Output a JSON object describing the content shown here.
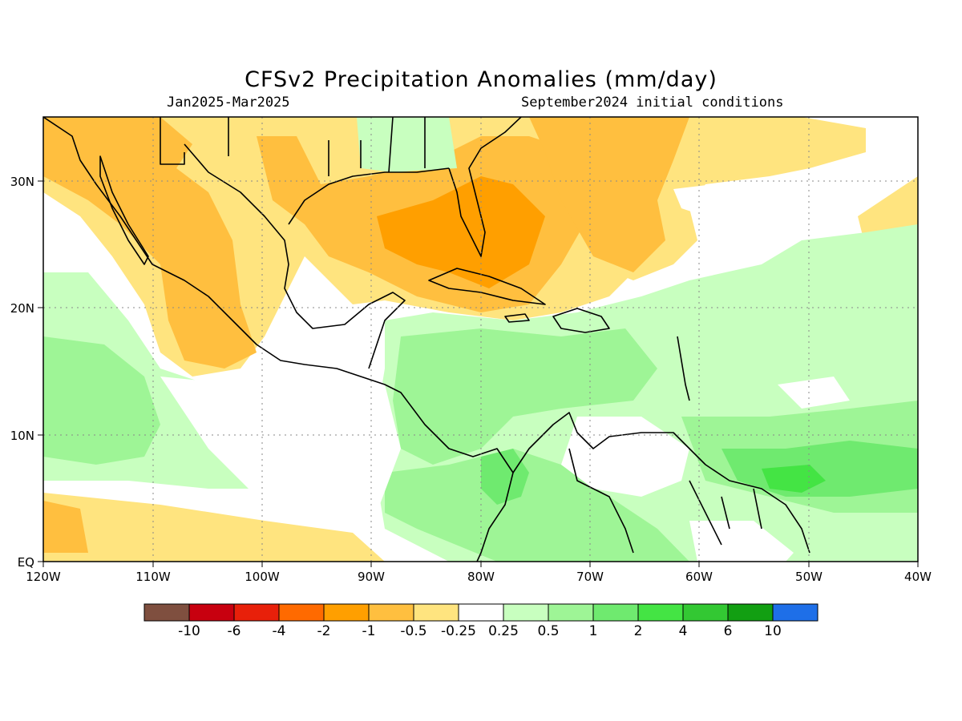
{
  "title": "CFSv2 Precipitation Anomalies (mm/day)",
  "subtitle_left": "Jan2025-Mar2025",
  "subtitle_right": "September2024 initial conditions",
  "x_ticks": [
    "120W",
    "110W",
    "100W",
    "90W",
    "80W",
    "70W",
    "60W",
    "50W",
    "40W"
  ],
  "y_ticks": [
    "EQ",
    "10N",
    "20N",
    "30N"
  ],
  "colorbar": {
    "colors": [
      "#7f4f3f",
      "#c8000f",
      "#e8200a",
      "#ff6a00",
      "#ff9f00",
      "#ffbf3f",
      "#ffe47f",
      "#ffffff",
      "#c8ffbf",
      "#9ef596",
      "#6fea6f",
      "#44e444",
      "#33c833",
      "#129f12",
      "#1e6fe8"
    ],
    "labels": [
      "-10",
      "-6",
      "-4",
      "-2",
      "-1",
      "-0.5",
      "-0.25",
      "0.25",
      "0.5",
      "1",
      "2",
      "4",
      "6",
      "10"
    ]
  },
  "colors": {
    "dry_light": "#ffe47f",
    "dry_mid": "#ffbf3f",
    "dry_strong": "#ff9f00",
    "wet_light": "#c8ffbf",
    "wet_mid": "#9ef596",
    "wet_strong": "#6fea6f",
    "wet_peak": "#44e444"
  }
}
